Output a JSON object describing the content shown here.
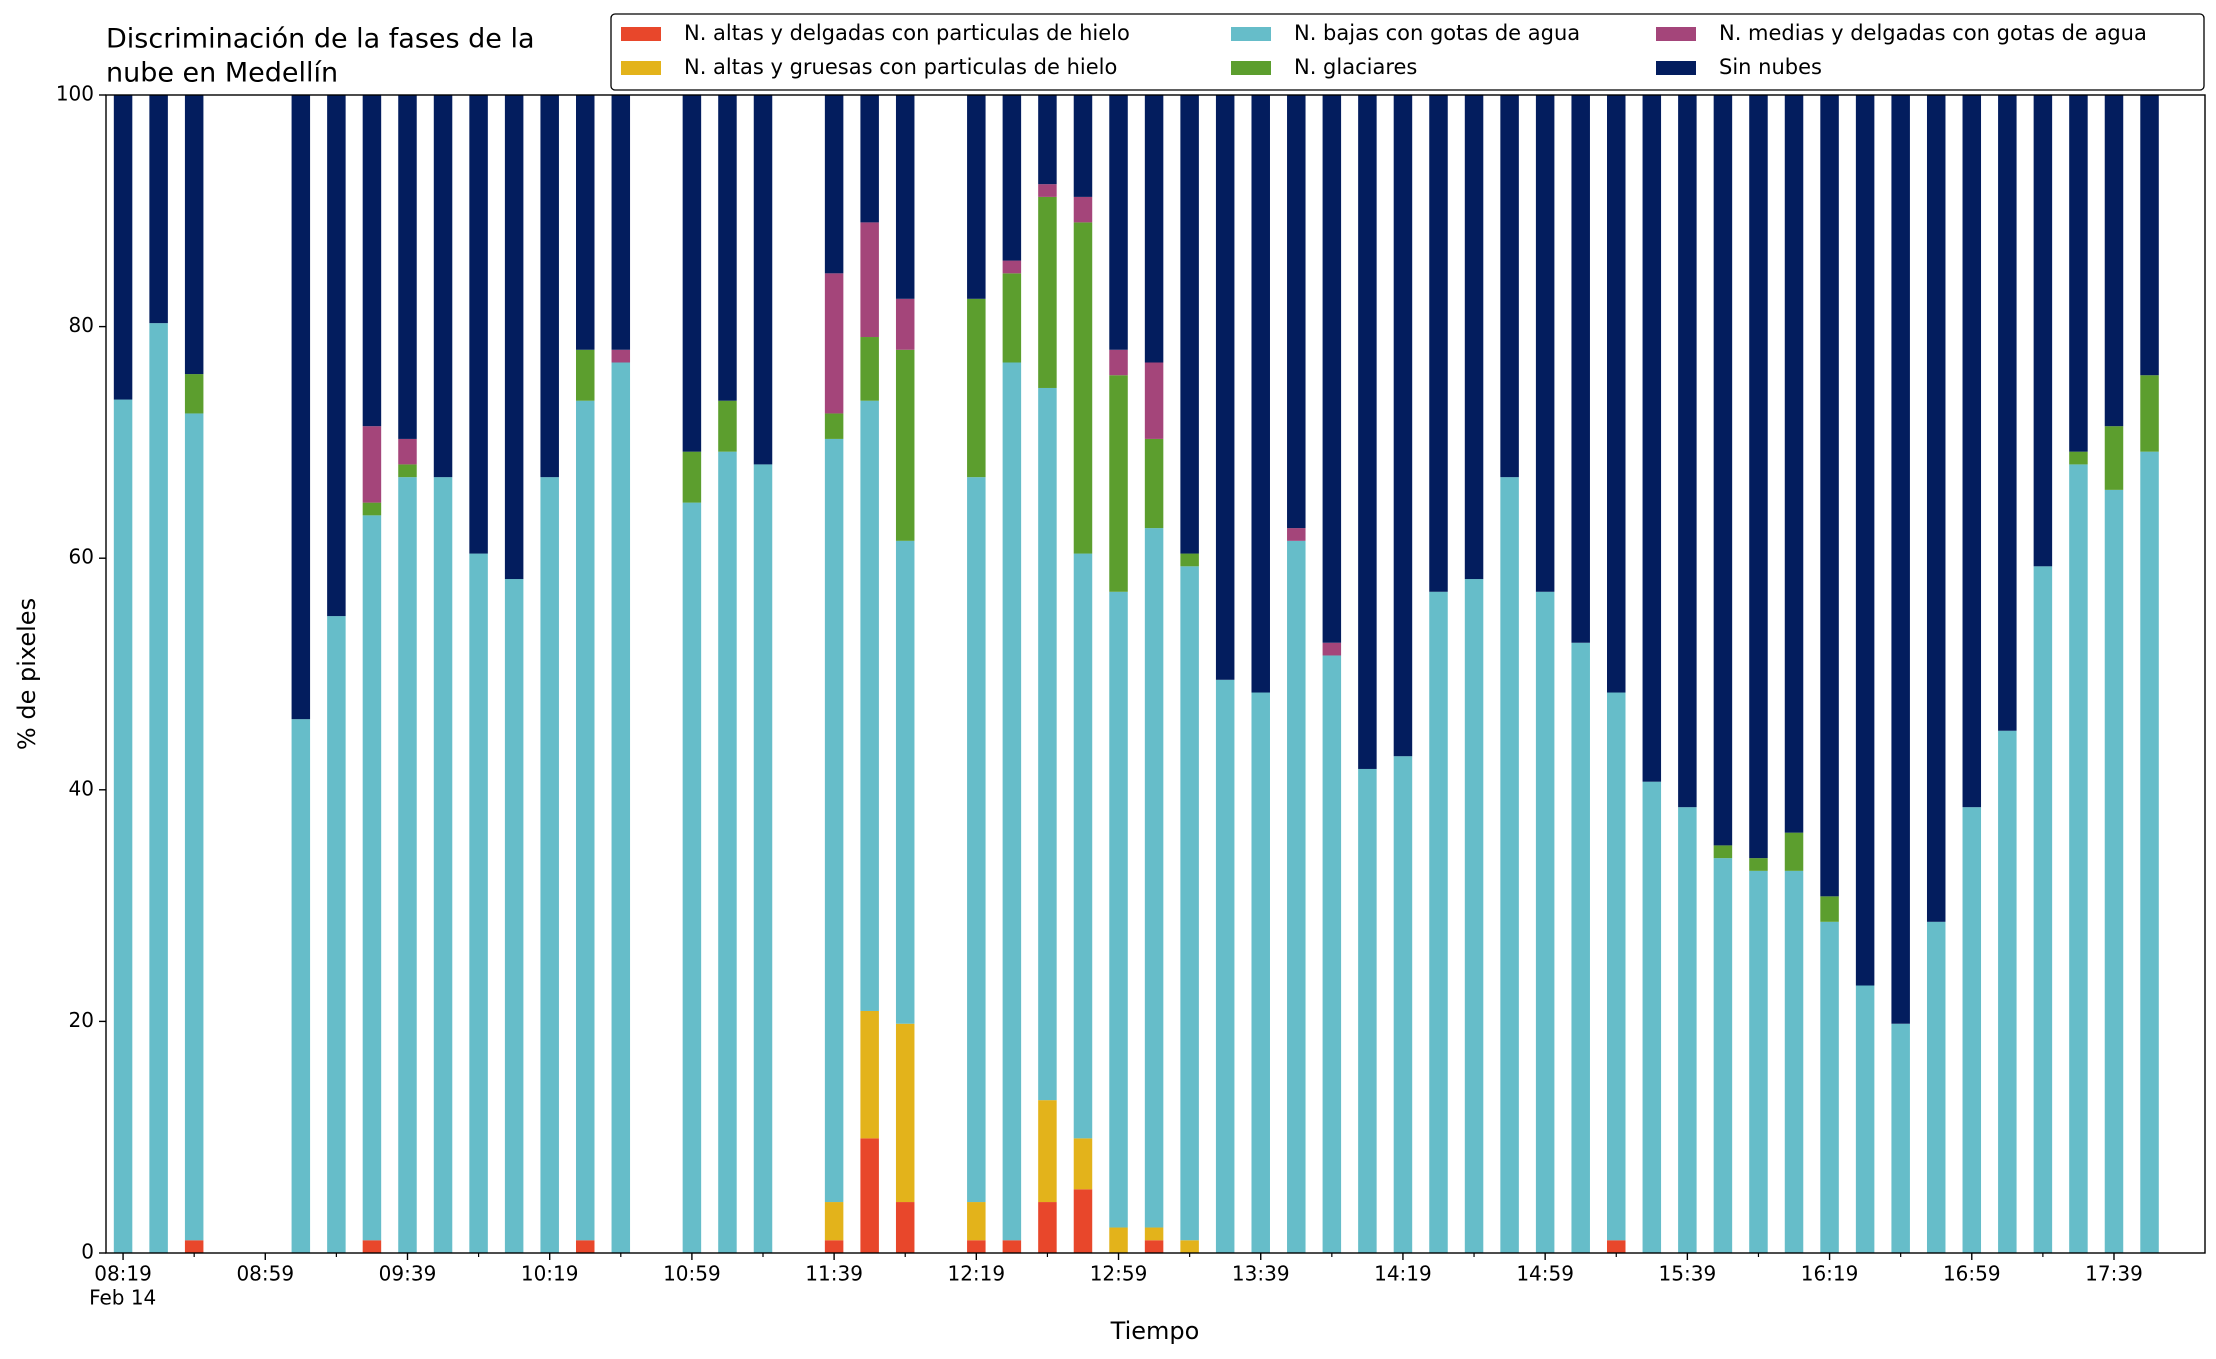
{
  "chart_data": {
    "type": "stacked_bar",
    "title": [
      "Discriminación de la fases de la",
      "nube en Medellín"
    ],
    "xlabel": "Tiempo",
    "ylabel": "% de pixeles",
    "date_label": "Feb 14",
    "categories": [
      "08:19",
      null,
      null,
      null,
      "08:59",
      null,
      null,
      null,
      "09:39",
      null,
      null,
      null,
      "10:19",
      null,
      null,
      null,
      "10:59",
      null,
      null,
      null,
      "11:39",
      null,
      null,
      null,
      "12:19",
      null,
      null,
      null,
      "12:59",
      null,
      null,
      null,
      "13:39",
      null,
      null,
      null,
      "14:19",
      null,
      null,
      null,
      "14:59",
      null,
      null,
      null,
      "15:39",
      null,
      null,
      null,
      "16:19",
      null,
      null,
      null,
      "16:59",
      null,
      null,
      null,
      "17:39",
      null
    ],
    "ylim": [
      0,
      100
    ],
    "yticks": [
      0,
      20,
      40,
      60,
      80,
      100
    ],
    "grid": false,
    "legend": "top-right",
    "series": [
      {
        "name": "N. altas y delgadas con particulas de hielo",
        "color": "#e8472b",
        "values": [
          0,
          0,
          1.1,
          null,
          null,
          0,
          0,
          1.1,
          0,
          0,
          0,
          0,
          0,
          1.1,
          0,
          null,
          0,
          0,
          0,
          null,
          1.1,
          9.9,
          4.4,
          null,
          1.1,
          1.1,
          4.4,
          5.5,
          0,
          1.1,
          0,
          0,
          0,
          0,
          0,
          0,
          0,
          0,
          0,
          0,
          0,
          0,
          1.1,
          0,
          0,
          0,
          0,
          0,
          0,
          0,
          0,
          0,
          0,
          0,
          0,
          0,
          0,
          0
        ]
      },
      {
        "name": "N. altas y gruesas con particulas de hielo",
        "color": "#e3b31b",
        "values": [
          0,
          0,
          0,
          null,
          null,
          0,
          0,
          0,
          0,
          0,
          0,
          0,
          0,
          0,
          0,
          null,
          0,
          0,
          0,
          null,
          3.3,
          11.0,
          15.4,
          null,
          3.3,
          0,
          8.8,
          4.4,
          2.2,
          1.1,
          1.1,
          0,
          0,
          0,
          0,
          0,
          0,
          0,
          0,
          0,
          0,
          0,
          0,
          0,
          0,
          0,
          0,
          0,
          0,
          0,
          0,
          0,
          0,
          0,
          0,
          0,
          0,
          0
        ]
      },
      {
        "name": "N. bajas con gotas de agua",
        "color": "#66bdc9",
        "values": [
          73.7,
          80.3,
          71.4,
          null,
          null,
          46.1,
          55.0,
          62.6,
          67.0,
          67.0,
          60.4,
          58.2,
          67.0,
          72.5,
          76.9,
          null,
          64.8,
          69.2,
          68.1,
          null,
          65.9,
          52.7,
          41.7,
          null,
          62.6,
          75.8,
          61.5,
          50.5,
          54.9,
          60.4,
          58.2,
          49.5,
          48.4,
          61.5,
          51.6,
          41.8,
          42.9,
          57.1,
          58.2,
          67.0,
          57.1,
          52.7,
          47.3,
          40.7,
          38.5,
          34.1,
          33.0,
          33.0,
          28.6,
          23.1,
          19.8,
          28.6,
          38.5,
          45.1,
          59.3,
          68.1,
          65.9,
          69.2
        ]
      },
      {
        "name": "N. glaciares",
        "color": "#5c9e2e",
        "values": [
          0,
          0,
          3.4,
          null,
          null,
          0,
          0,
          1.1,
          1.1,
          0,
          0,
          0,
          0,
          4.4,
          0,
          null,
          4.4,
          4.4,
          0,
          null,
          2.2,
          5.5,
          16.5,
          null,
          15.4,
          7.7,
          16.5,
          28.6,
          18.7,
          7.7,
          1.1,
          0,
          0,
          0,
          0,
          0,
          0,
          0,
          0,
          0,
          0,
          0,
          0,
          0,
          0,
          1.1,
          1.1,
          3.3,
          2.2,
          0,
          0,
          0,
          0,
          0,
          0,
          1.1,
          5.5,
          6.6
        ]
      },
      {
        "name": "N. medias y delgadas con gotas de agua",
        "color": "#a4457a",
        "values": [
          0,
          0,
          0,
          null,
          null,
          0,
          0,
          6.6,
          2.2,
          0,
          0,
          0,
          0,
          0,
          1.1,
          null,
          0,
          0,
          0,
          null,
          12.1,
          9.9,
          4.4,
          null,
          0,
          1.1,
          1.1,
          2.2,
          2.2,
          6.6,
          0,
          0,
          0,
          1.1,
          1.1,
          0,
          0,
          0,
          0,
          0,
          0,
          0,
          0,
          0,
          0,
          0,
          0,
          0,
          0,
          0,
          0,
          0,
          0,
          0,
          0,
          0,
          0,
          0
        ]
      },
      {
        "name": "Sin nubes",
        "color": "#031d5e",
        "values": [
          26.3,
          19.7,
          24.1,
          null,
          null,
          53.9,
          45.0,
          28.6,
          29.7,
          33.0,
          39.6,
          41.8,
          33.0,
          22.0,
          22.0,
          null,
          30.8,
          26.4,
          31.9,
          null,
          15.4,
          11.0,
          17.6,
          null,
          17.6,
          14.3,
          7.7,
          8.8,
          22.0,
          23.1,
          39.6,
          50.5,
          51.6,
          37.4,
          47.3,
          58.2,
          57.1,
          42.9,
          41.8,
          33.0,
          42.9,
          47.3,
          51.6,
          59.3,
          61.5,
          64.8,
          65.9,
          63.7,
          69.2,
          76.9,
          80.2,
          71.4,
          61.5,
          54.9,
          40.7,
          30.8,
          28.6,
          24.2
        ]
      }
    ]
  }
}
